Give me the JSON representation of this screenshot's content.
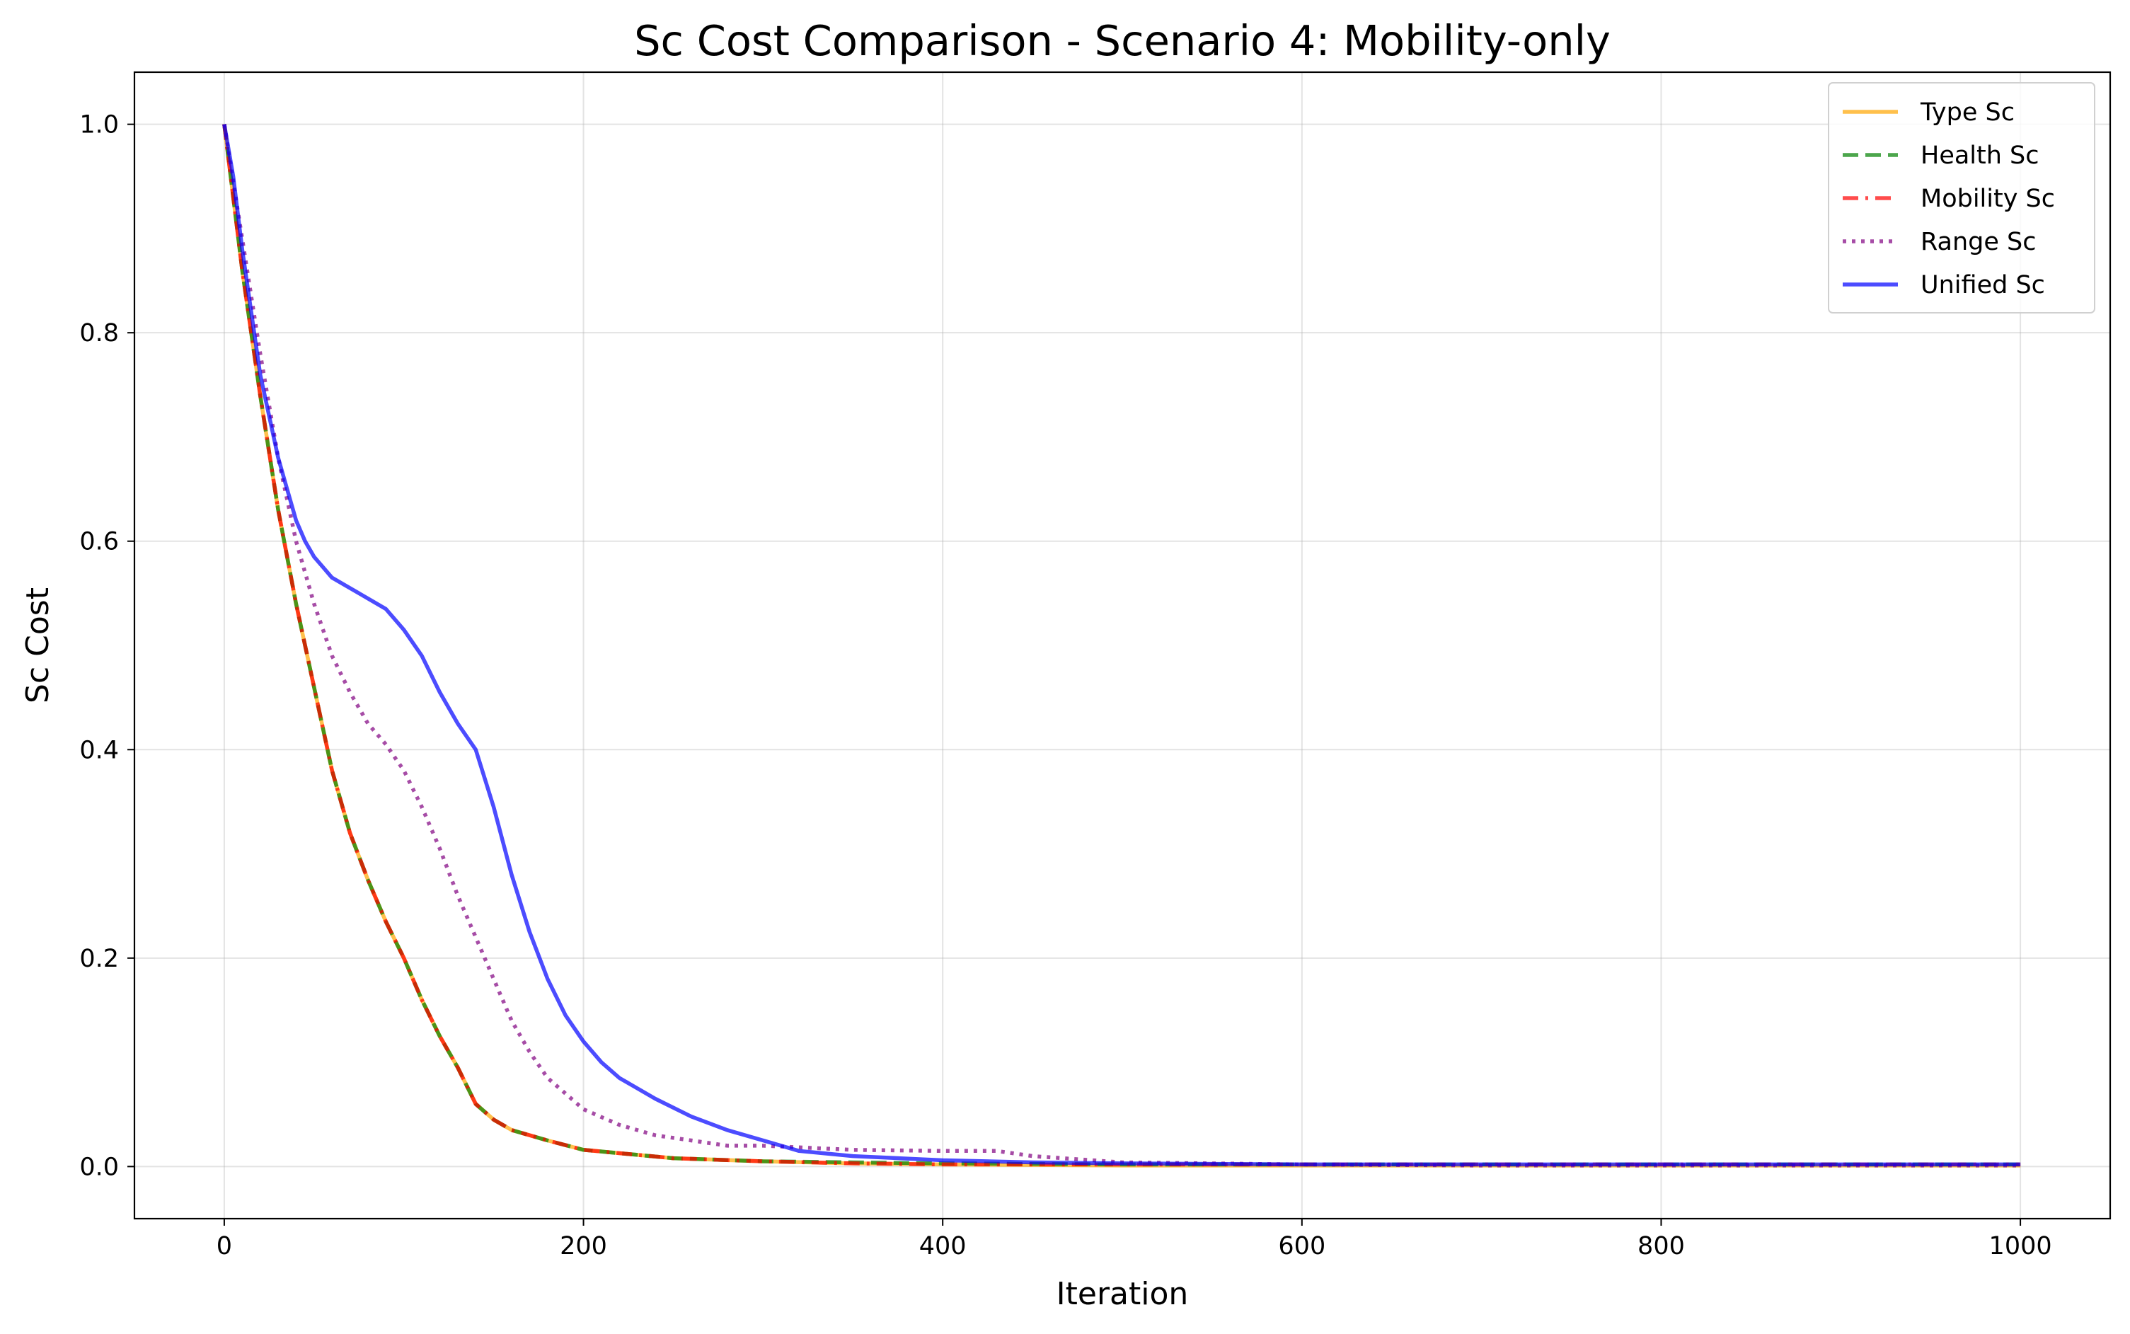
{
  "chart_data": {
    "type": "line",
    "title": "Sc Cost Comparison - Scenario 4: Mobility-only",
    "xlabel": "Iteration",
    "ylabel": "Sc Cost",
    "xlim": [
      -50,
      1050
    ],
    "ylim": [
      -0.05,
      1.05
    ],
    "xticks": [
      0,
      200,
      400,
      600,
      800,
      1000
    ],
    "yticks": [
      0.0,
      0.2,
      0.4,
      0.6,
      0.8,
      1.0
    ],
    "xtick_labels": [
      "0",
      "200",
      "400",
      "600",
      "800",
      "1000"
    ],
    "ytick_labels": [
      "0.0",
      "0.2",
      "0.4",
      "0.6",
      "0.8",
      "1.0"
    ],
    "grid": true,
    "legend_position": "top-right",
    "series": [
      {
        "name": "Type Sc",
        "color": "#FFA500",
        "style": "solid",
        "x": [
          0,
          10,
          20,
          30,
          40,
          50,
          60,
          70,
          80,
          90,
          100,
          110,
          120,
          130,
          140,
          150,
          160,
          180,
          200,
          250,
          300,
          350,
          400,
          500,
          600,
          700,
          800,
          900,
          1000
        ],
        "y": [
          1.0,
          0.86,
          0.74,
          0.63,
          0.54,
          0.46,
          0.38,
          0.32,
          0.275,
          0.235,
          0.2,
          0.16,
          0.125,
          0.095,
          0.06,
          0.045,
          0.035,
          0.025,
          0.016,
          0.008,
          0.005,
          0.003,
          0.002,
          0.001,
          0.001,
          0.001,
          0.001,
          0.001,
          0.001
        ]
      },
      {
        "name": "Health Sc",
        "color": "#008000",
        "style": "dashed",
        "x": [
          0,
          10,
          20,
          30,
          40,
          50,
          60,
          70,
          80,
          90,
          100,
          110,
          120,
          130,
          140,
          150,
          160,
          180,
          200,
          250,
          300,
          350,
          400,
          500,
          600,
          700,
          800,
          900,
          1000
        ],
        "y": [
          1.0,
          0.86,
          0.74,
          0.63,
          0.54,
          0.46,
          0.38,
          0.32,
          0.275,
          0.235,
          0.2,
          0.16,
          0.125,
          0.095,
          0.06,
          0.045,
          0.035,
          0.025,
          0.016,
          0.008,
          0.005,
          0.004,
          0.003,
          0.002,
          0.002,
          0.002,
          0.002,
          0.002,
          0.002
        ]
      },
      {
        "name": "Mobility Sc",
        "color": "#FF0000",
        "style": "dashdot",
        "x": [
          0,
          10,
          20,
          30,
          40,
          50,
          60,
          70,
          80,
          90,
          100,
          110,
          120,
          130,
          140,
          150,
          160,
          180,
          200,
          250,
          300,
          350,
          400,
          500,
          600,
          700,
          800,
          900,
          1000
        ],
        "y": [
          1.0,
          0.86,
          0.74,
          0.63,
          0.54,
          0.46,
          0.38,
          0.32,
          0.275,
          0.235,
          0.2,
          0.16,
          0.125,
          0.095,
          0.06,
          0.045,
          0.035,
          0.025,
          0.016,
          0.008,
          0.005,
          0.003,
          0.002,
          0.002,
          0.002,
          0.002,
          0.002,
          0.002,
          0.002
        ]
      },
      {
        "name": "Range Sc",
        "color": "#800080",
        "style": "dotted",
        "x": [
          0,
          10,
          20,
          30,
          40,
          50,
          60,
          70,
          80,
          90,
          100,
          110,
          120,
          130,
          140,
          150,
          160,
          170,
          180,
          190,
          200,
          220,
          240,
          260,
          280,
          300,
          350,
          400,
          430,
          450,
          500,
          600,
          700,
          800,
          900,
          1000
        ],
        "y": [
          1.0,
          0.89,
          0.78,
          0.68,
          0.6,
          0.54,
          0.49,
          0.455,
          0.425,
          0.405,
          0.38,
          0.345,
          0.305,
          0.26,
          0.22,
          0.18,
          0.14,
          0.11,
          0.085,
          0.07,
          0.055,
          0.04,
          0.03,
          0.025,
          0.02,
          0.02,
          0.016,
          0.015,
          0.015,
          0.01,
          0.004,
          0.002,
          0.001,
          0.001,
          0.001,
          0.001
        ]
      },
      {
        "name": "Unified Sc",
        "color": "#0000FF",
        "style": "solid",
        "x": [
          0,
          5,
          10,
          15,
          20,
          25,
          30,
          35,
          40,
          45,
          50,
          55,
          60,
          70,
          80,
          90,
          100,
          110,
          120,
          130,
          140,
          150,
          160,
          170,
          180,
          190,
          200,
          210,
          220,
          240,
          260,
          280,
          300,
          320,
          350,
          400,
          450,
          500,
          600,
          700,
          800,
          900,
          1000
        ],
        "y": [
          1.0,
          0.95,
          0.88,
          0.82,
          0.76,
          0.72,
          0.68,
          0.65,
          0.62,
          0.6,
          0.585,
          0.575,
          0.565,
          0.555,
          0.545,
          0.535,
          0.515,
          0.49,
          0.455,
          0.425,
          0.4,
          0.345,
          0.28,
          0.225,
          0.18,
          0.145,
          0.12,
          0.1,
          0.085,
          0.065,
          0.048,
          0.035,
          0.025,
          0.015,
          0.01,
          0.006,
          0.004,
          0.003,
          0.002,
          0.002,
          0.002,
          0.002,
          0.002
        ]
      }
    ]
  }
}
